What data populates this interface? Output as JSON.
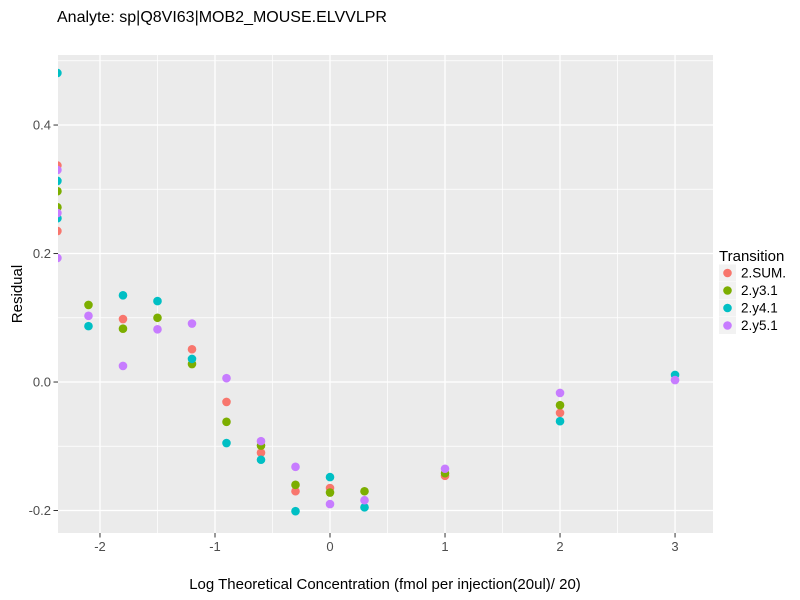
{
  "chart_data": {
    "type": "scatter",
    "title": "Analyte: sp|Q8VI63|MOB2_MOUSE.ELVVLPR",
    "xlabel": "Log Theoretical Concentration (fmol per injection(20ul)/ 20)",
    "ylabel": "Residual",
    "xlim": [
      -2.365,
      3.33
    ],
    "ylim": [
      -0.235,
      0.509
    ],
    "x_ticks": [
      -2,
      -1,
      0,
      1,
      2,
      3
    ],
    "x_tick_labels": [
      "-2",
      "-1",
      "0",
      "1",
      "2",
      "3"
    ],
    "y_ticks": [
      -0.2,
      0,
      0.2,
      0.4
    ],
    "y_tick_labels": [
      "-0.2",
      "0.0",
      "0.2",
      "0.4"
    ],
    "x_minor_ticks": [
      -1.5,
      -0.5,
      0.5,
      1.5,
      2.5
    ],
    "y_minor_ticks": [
      -0.1,
      0.1,
      0.3,
      0.5
    ],
    "grid": true,
    "legend": {
      "title": "Transition",
      "position": "right"
    },
    "colors": {
      "panel_bg": "#EBEBEB",
      "grid_major": "#FFFFFF",
      "grid_minor": "#FFFFFF",
      "tick_mark": "#333333",
      "tick_label": "#4D4D4D",
      "text": "#000000"
    },
    "series": [
      {
        "name": "2.SUM.",
        "color": "#F8766D",
        "points": [
          [
            -2.37,
            0.337
          ],
          [
            -2.37,
            0.235
          ],
          [
            -1.8,
            0.098
          ],
          [
            -1.2,
            0.051
          ],
          [
            -0.9,
            -0.031
          ],
          [
            -0.6,
            -0.11
          ],
          [
            -0.3,
            -0.17
          ],
          [
            0,
            -0.165
          ],
          [
            1,
            -0.146
          ],
          [
            2,
            -0.048
          ]
        ]
      },
      {
        "name": "2.y3.1",
        "color": "#7CAE00",
        "points": [
          [
            -2.37,
            0.297
          ],
          [
            -2.37,
            0.272
          ],
          [
            -2.1,
            0.12
          ],
          [
            -1.8,
            0.083
          ],
          [
            -1.5,
            0.1
          ],
          [
            -1.2,
            0.028
          ],
          [
            -0.9,
            -0.062
          ],
          [
            -0.6,
            -0.099
          ],
          [
            -0.3,
            -0.16
          ],
          [
            0,
            -0.172
          ],
          [
            0.3,
            -0.17
          ],
          [
            1,
            -0.142
          ],
          [
            2,
            -0.036
          ]
        ]
      },
      {
        "name": "2.y4.1",
        "color": "#00BFC4",
        "points": [
          [
            -2.37,
            0.481
          ],
          [
            -2.37,
            0.313
          ],
          [
            -2.37,
            0.255
          ],
          [
            -2.1,
            0.087
          ],
          [
            -1.8,
            0.135
          ],
          [
            -1.5,
            0.126
          ],
          [
            -1.2,
            0.036
          ],
          [
            -0.9,
            -0.095
          ],
          [
            -0.6,
            -0.121
          ],
          [
            -0.3,
            -0.201
          ],
          [
            0,
            -0.148
          ],
          [
            0.3,
            -0.195
          ],
          [
            2,
            -0.061
          ],
          [
            3,
            0.011
          ]
        ]
      },
      {
        "name": "2.y5.1",
        "color": "#C77CFF",
        "points": [
          [
            -2.37,
            0.33
          ],
          [
            -2.37,
            0.263
          ],
          [
            -2.37,
            0.193
          ],
          [
            -2.1,
            0.103
          ],
          [
            -1.8,
            0.025
          ],
          [
            -1.5,
            0.082
          ],
          [
            -1.2,
            0.091
          ],
          [
            -0.9,
            0.006
          ],
          [
            -0.6,
            -0.092
          ],
          [
            -0.3,
            -0.132
          ],
          [
            0,
            -0.19
          ],
          [
            0.3,
            -0.184
          ],
          [
            1,
            -0.135
          ],
          [
            2,
            -0.017
          ],
          [
            3,
            0.003
          ]
        ]
      }
    ]
  }
}
